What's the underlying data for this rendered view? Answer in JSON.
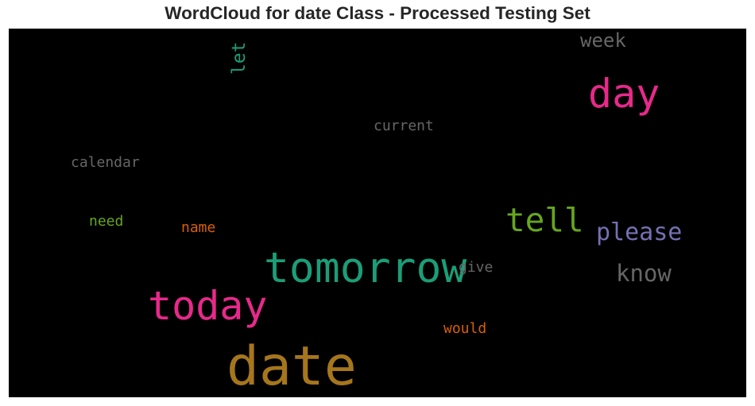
{
  "chart_data": {
    "type": "wordcloud",
    "title": "WordCloud for date Class - Processed Testing Set",
    "background": "#000000",
    "words": [
      {
        "text": "date",
        "weight": 1.0,
        "color": "#a6761d"
      },
      {
        "text": "tomorrow",
        "weight": 0.78,
        "color": "#1b9e77"
      },
      {
        "text": "today",
        "weight": 0.74,
        "color": "#e7298a"
      },
      {
        "text": "day",
        "weight": 0.74,
        "color": "#e7298a"
      },
      {
        "text": "tell",
        "weight": 0.6,
        "color": "#66a61e"
      },
      {
        "text": "please",
        "weight": 0.44,
        "color": "#7570b3"
      },
      {
        "text": "know",
        "weight": 0.42,
        "color": "#666666"
      },
      {
        "text": "week",
        "weight": 0.36,
        "color": "#666666"
      },
      {
        "text": "let",
        "weight": 0.34,
        "color": "#1b9e77",
        "orientation": "vertical"
      },
      {
        "text": "current",
        "weight": 0.26,
        "color": "#666666"
      },
      {
        "text": "calendar",
        "weight": 0.26,
        "color": "#666666"
      },
      {
        "text": "need",
        "weight": 0.26,
        "color": "#66a61e"
      },
      {
        "text": "name",
        "weight": 0.26,
        "color": "#d95f02"
      },
      {
        "text": "would",
        "weight": 0.26,
        "color": "#d95f02"
      },
      {
        "text": "give",
        "weight": 0.26,
        "color": "#666666"
      }
    ]
  }
}
